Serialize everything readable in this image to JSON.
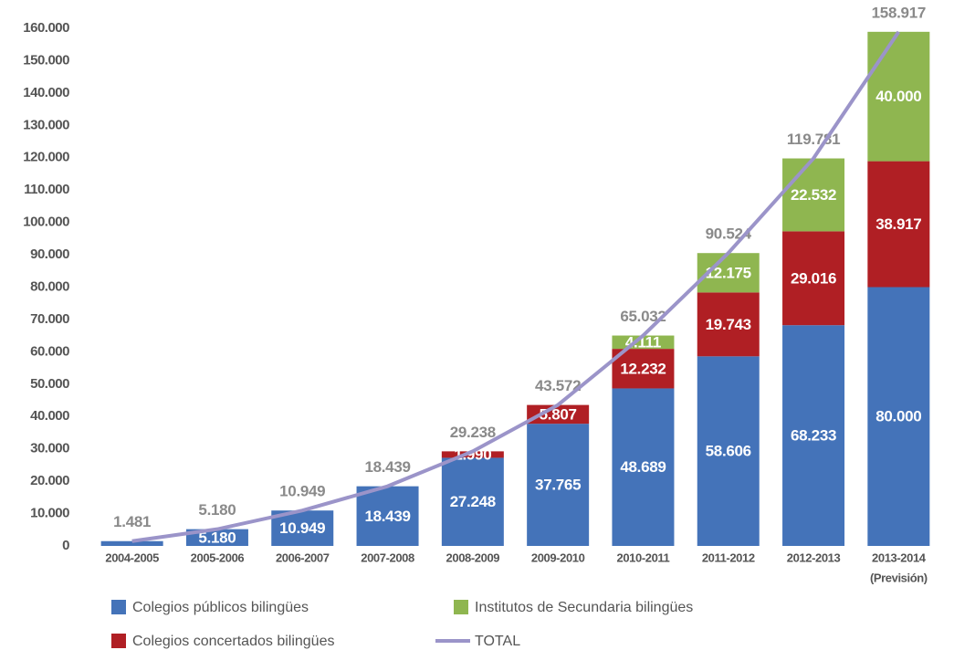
{
  "chart_data": {
    "type": "bar",
    "stacked": true,
    "categories": [
      "2004-2005",
      "2005-2006",
      "2006-2007",
      "2007-2008",
      "2008-2009",
      "2009-2010",
      "2010-2011",
      "2011-2012",
      "2012-2013",
      "2013-2014"
    ],
    "category_note": "(Previsión)",
    "series": [
      {
        "name": "Colegios públicos bilingües",
        "type": "bar",
        "color": "#4473b9",
        "values": [
          1481,
          5180,
          10949,
          18439,
          27248,
          37765,
          48689,
          58606,
          68233,
          80000
        ],
        "value_labels": [
          null,
          "5.180",
          "10.949",
          "18.439",
          "27.248",
          "37.765",
          "48.689",
          "58.606",
          "68.233",
          "80.000"
        ]
      },
      {
        "name": "Colegios concertados bilingües",
        "type": "bar",
        "color": "#b01f24",
        "values": [
          null,
          null,
          null,
          null,
          1990,
          5807,
          12232,
          19743,
          29016,
          38917
        ],
        "value_labels": [
          null,
          null,
          null,
          null,
          "1.990",
          "5.807",
          "12.232",
          "19.743",
          "29.016",
          "38.917"
        ]
      },
      {
        "name": "Institutos de Secundaria bilingües",
        "type": "bar",
        "color": "#8fb650",
        "values": [
          null,
          null,
          null,
          null,
          null,
          null,
          4111,
          12175,
          22532,
          40000
        ],
        "value_labels": [
          null,
          null,
          null,
          null,
          null,
          null,
          "4.111",
          "12.175",
          "22.532",
          "40.000"
        ]
      },
      {
        "name": "TOTAL",
        "type": "line",
        "color": "#9b94c9",
        "values": [
          1481,
          5180,
          10949,
          18439,
          29238,
          43572,
          65032,
          90524,
          119781,
          158917
        ],
        "value_labels": [
          "1.481",
          "5.180",
          "10.949",
          "18.439",
          "29.238",
          "43.572",
          "65.032",
          "90.524",
          "119.781",
          "158.917"
        ]
      }
    ],
    "ylim": [
      0,
      160000
    ],
    "yticks": [
      0,
      {
        "value": 10000,
        "label": "10.000"
      },
      {
        "value": 20000,
        "label": "20.000"
      },
      {
        "value": 30000,
        "label": "30.000"
      },
      {
        "value": 40000,
        "label": "40.000"
      },
      {
        "value": 50000,
        "label": "50.000"
      },
      {
        "value": 60000,
        "label": "60.000"
      },
      {
        "value": 70000,
        "label": "70.000"
      },
      {
        "value": 80000,
        "label": "80.000"
      },
      {
        "value": 90000,
        "label": "90.000"
      },
      {
        "value": 100000,
        "label": "100.000"
      },
      {
        "value": 110000,
        "label": "110.000"
      },
      {
        "value": 120000,
        "label": "120.000"
      },
      {
        "value": 130000,
        "label": "130.000"
      },
      {
        "value": 140000,
        "label": "140.000"
      },
      {
        "value": 150000,
        "label": "150.000"
      },
      {
        "value": 160000,
        "label": "160.000"
      }
    ],
    "grid": false
  }
}
